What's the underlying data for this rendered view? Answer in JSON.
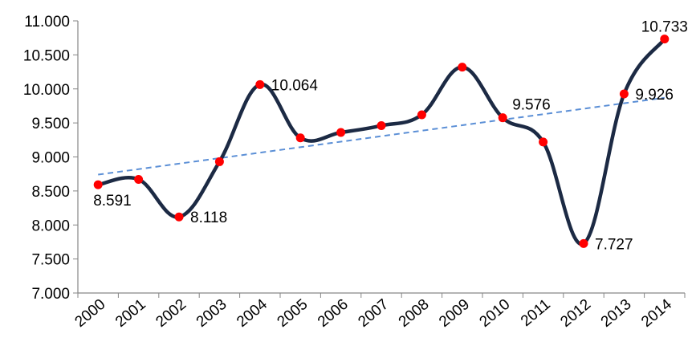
{
  "chart_data": {
    "type": "line",
    "title": "",
    "xlabel": "",
    "ylabel": "",
    "categories": [
      "2000",
      "2001",
      "2002",
      "2003",
      "2004",
      "2005",
      "2006",
      "2007",
      "2008",
      "2009",
      "2010",
      "2011",
      "2012",
      "2013",
      "2014"
    ],
    "series": [
      {
        "values": [
          8591,
          8670,
          8118,
          8930,
          10064,
          9280,
          9360,
          9460,
          9620,
          10320,
          9576,
          9220,
          7727,
          9926,
          10733
        ],
        "color": "#1c2a44",
        "marker_color": "#ff0000",
        "smooth": true
      }
    ],
    "trendline": {
      "style": "dashed",
      "color": "#5b8fd6",
      "start": 8740,
      "end": 9870
    },
    "data_labels": [
      {
        "index": 0,
        "text": "8.591",
        "position": "below-right"
      },
      {
        "index": 2,
        "text": "8.118",
        "position": "right"
      },
      {
        "index": 4,
        "text": "10.064",
        "position": "right"
      },
      {
        "index": 10,
        "text": "9.576",
        "position": "above-right"
      },
      {
        "index": 12,
        "text": "7.727",
        "position": "right"
      },
      {
        "index": 13,
        "text": "9.926",
        "position": "right"
      },
      {
        "index": 14,
        "text": "10.733",
        "position": "above"
      }
    ],
    "ylim": [
      7000,
      11000
    ],
    "yticks": [
      7000,
      7500,
      8000,
      8500,
      9000,
      9500,
      10000,
      10500,
      11000
    ],
    "ytick_labels": [
      "7.000",
      "7.500",
      "8.000",
      "8.500",
      "9.000",
      "9.500",
      "10.000",
      "10.500",
      "11.000"
    ],
    "grid": false,
    "legend": "none"
  }
}
